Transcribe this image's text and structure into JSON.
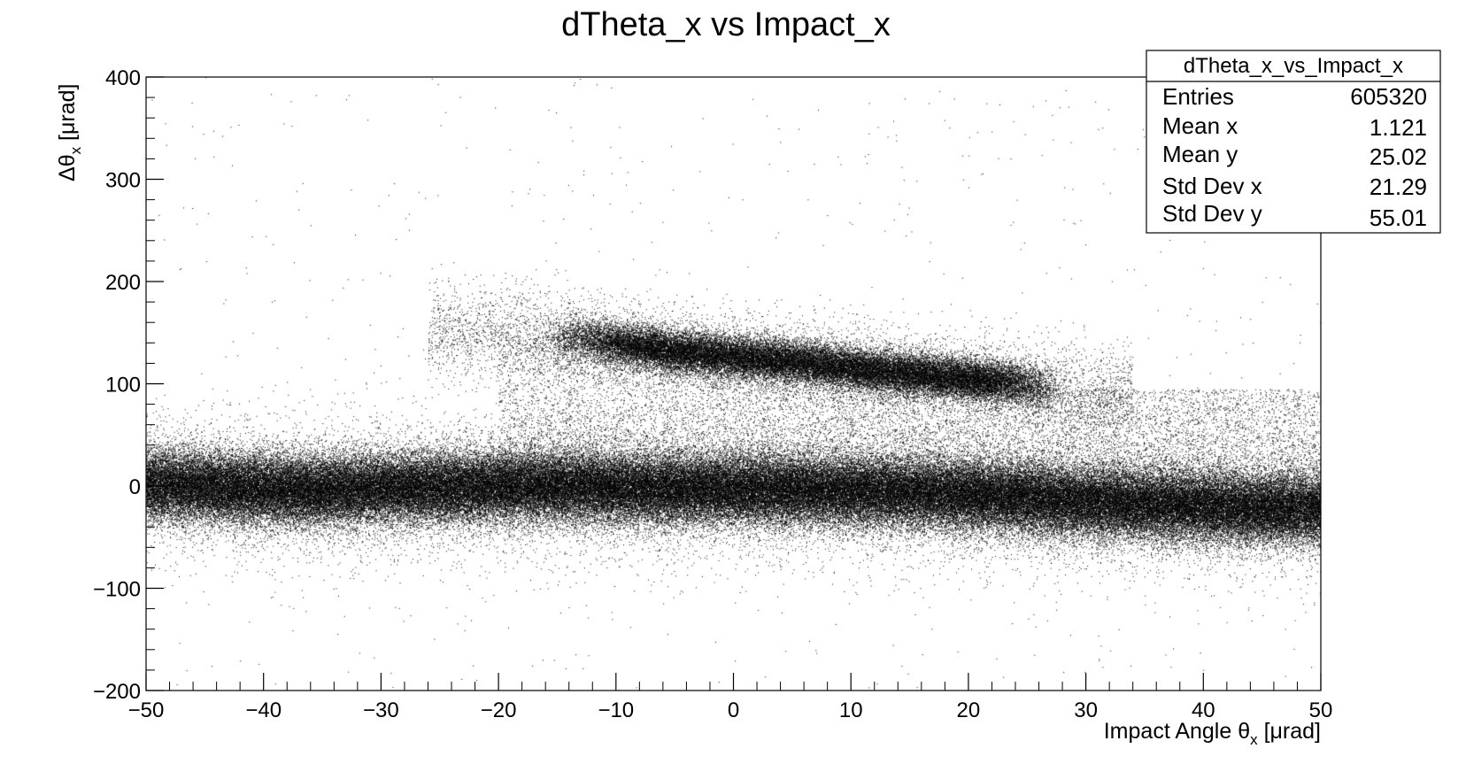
{
  "chart_data": {
    "type": "scatter",
    "title": "dTheta_x vs Impact_x",
    "xlabel_main": "Impact Angle θ",
    "xlabel_sub": "x",
    "xlabel_unit": " [μrad]",
    "ylabel_main": "Δθ",
    "ylabel_sub": "x",
    "ylabel_unit": " [μrad]",
    "xlim": [
      -50,
      50
    ],
    "ylim": [
      -200,
      400
    ],
    "x_ticks": [
      "−50",
      "−40",
      "−30",
      "−20",
      "−10",
      "0",
      "10",
      "20",
      "30",
      "40",
      "50"
    ],
    "y_ticks": [
      "−200",
      "−100",
      "0",
      "100",
      "200",
      "300",
      "400"
    ],
    "grid": false,
    "marker_color": "#000000",
    "stats_box": {
      "name": "dTheta_x_vs_Impact_x",
      "placement": "top-right",
      "rows": [
        {
          "label": "Entries",
          "value": "605320"
        },
        {
          "label": "Mean x",
          "value": "1.121"
        },
        {
          "label": "Mean y",
          "value": "25.02"
        },
        {
          "label": "Std Dev x",
          "value": "21.29"
        },
        {
          "label": "Std Dev y",
          "value": "55.01"
        }
      ]
    },
    "series": [
      {
        "x": [
          -50,
          -45,
          -40,
          -35,
          -30,
          -25,
          -20,
          -15,
          -10,
          -5,
          0,
          5,
          10,
          15,
          20,
          25,
          30,
          35,
          40,
          45,
          50
        ],
        "y": [
          2,
          0,
          -3,
          -4,
          -2,
          -1,
          0,
          0,
          -2,
          -3,
          -3,
          -4,
          -5,
          -6,
          -9,
          -12,
          -16,
          -18,
          -20,
          -22,
          -22
        ]
      },
      {
        "x": [
          -20,
          -15,
          -10,
          -5,
          0,
          5,
          10,
          15,
          20,
          25,
          28
        ],
        "y": [
          150,
          148,
          140,
          132,
          127,
          122,
          116,
          110,
          105,
          100,
          95
        ]
      }
    ]
  }
}
